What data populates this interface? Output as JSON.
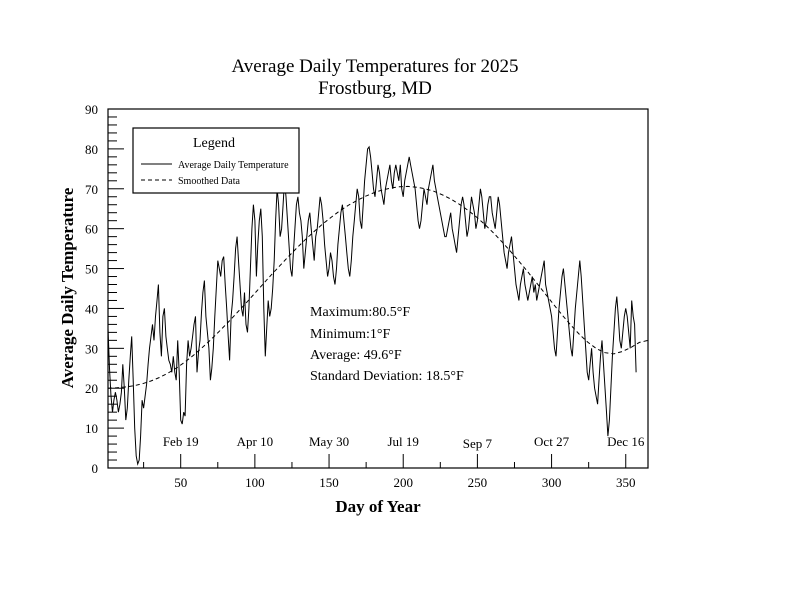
{
  "chart_data": {
    "type": "line",
    "title": "Average Daily Temperatures for 2025",
    "subtitle": "Frostburg, MD",
    "xlabel": "Day of Year",
    "ylabel": "Average Daily Temperature",
    "xlim": [
      1,
      365
    ],
    "ylim": [
      0,
      90
    ],
    "x_ticks": [
      50,
      100,
      150,
      200,
      250,
      300,
      350
    ],
    "y_ticks": [
      0,
      10,
      20,
      30,
      40,
      50,
      60,
      70,
      80,
      90
    ],
    "date_markers": [
      {
        "day": 50,
        "label": "Feb 19"
      },
      {
        "day": 100,
        "label": "Apr 10"
      },
      {
        "day": 150,
        "label": "May 30"
      },
      {
        "day": 200,
        "label": "Jul 19"
      },
      {
        "day": 250,
        "label": "Sep 7"
      },
      {
        "day": 300,
        "label": "Oct 27"
      },
      {
        "day": 350,
        "label": "Dec 16"
      }
    ],
    "legend": {
      "title": "Legend",
      "position": "top-left",
      "entries": [
        "Average Daily Temperature",
        "Smoothed Data"
      ]
    },
    "stats": [
      "Maximum:80.5°F",
      "Minimum:1°F",
      "Average: 49.6°F",
      "Standard Deviation: 18.5°F"
    ],
    "series": [
      {
        "name": "Average Daily Temperature",
        "style": "solid",
        "values": [
          35,
          25,
          18,
          14,
          17,
          19,
          17,
          14,
          16,
          19,
          26,
          20,
          12,
          15,
          22,
          28,
          33,
          22,
          10,
          3,
          1,
          2,
          8,
          17,
          15,
          18,
          21,
          26,
          30,
          33,
          36,
          32,
          38,
          42,
          46,
          34,
          28,
          38,
          40,
          33,
          30,
          27,
          26,
          24,
          28,
          24,
          22,
          32,
          24,
          12,
          11,
          14,
          13,
          26,
          32,
          28,
          30,
          33,
          36,
          38,
          24,
          29,
          32,
          39,
          44,
          47,
          38,
          34,
          30,
          22,
          25,
          30,
          38,
          45,
          52,
          50,
          48,
          52,
          53,
          46,
          40,
          33,
          27,
          38,
          42,
          48,
          55,
          58,
          52,
          46,
          40,
          38,
          44,
          36,
          34,
          40,
          50,
          60,
          66,
          62,
          48,
          56,
          62,
          65,
          58,
          40,
          28,
          35,
          42,
          38,
          40,
          45,
          52,
          62,
          70,
          66,
          58,
          60,
          66,
          72,
          68,
          62,
          56,
          50,
          48,
          54,
          60,
          66,
          68,
          64,
          62,
          58,
          50,
          54,
          58,
          62,
          64,
          60,
          56,
          52,
          58,
          60,
          64,
          68,
          66,
          62,
          56,
          52,
          48,
          50,
          54,
          52,
          48,
          46,
          50,
          56,
          60,
          64,
          66,
          62,
          58,
          54,
          50,
          48,
          52,
          58,
          62,
          66,
          70,
          68,
          62,
          60,
          66,
          72,
          76,
          80,
          80.5,
          78,
          74,
          70,
          68,
          72,
          76,
          74,
          70,
          68,
          66,
          70,
          72,
          74,
          76,
          72,
          70,
          74,
          76,
          74,
          72,
          76,
          70,
          68,
          72,
          74,
          76,
          78,
          76,
          74,
          72,
          70,
          66,
          62,
          60,
          62,
          66,
          70,
          68,
          66,
          70,
          72,
          74,
          76,
          72,
          70,
          68,
          66,
          64,
          62,
          60,
          58,
          58,
          60,
          62,
          64,
          60,
          58,
          56,
          54,
          58,
          62,
          66,
          68,
          66,
          62,
          58,
          60,
          64,
          68,
          66,
          64,
          60,
          62,
          66,
          70,
          68,
          64,
          60,
          62,
          66,
          68,
          68,
          64,
          62,
          60,
          64,
          68,
          66,
          62,
          58,
          54,
          52,
          50,
          54,
          56,
          58,
          54,
          50,
          46,
          44,
          42,
          46,
          48,
          50,
          46,
          44,
          42,
          44,
          46,
          48,
          44,
          46,
          42,
          44,
          46,
          48,
          50,
          52,
          46,
          44,
          42,
          40,
          38,
          34,
          30,
          28,
          34,
          40,
          44,
          48,
          50,
          46,
          42,
          38,
          34,
          30,
          28,
          34,
          40,
          44,
          48,
          52,
          48,
          42,
          36,
          30,
          24,
          22,
          26,
          30,
          24,
          20,
          18,
          16,
          22,
          28,
          32,
          26,
          20,
          14,
          8,
          12,
          20,
          28,
          34,
          40,
          43,
          38,
          32,
          30,
          34,
          38,
          40,
          38,
          34,
          30,
          42,
          38,
          36,
          24
        ]
      },
      {
        "name": "Smoothed Data",
        "style": "dashed",
        "values": [
          20.0,
          20.1,
          20.3,
          20.6,
          21.1,
          21.8,
          22.7,
          23.8,
          25.1,
          26.6,
          28.3,
          30.2,
          32.2,
          34.3,
          36.5,
          38.8,
          41.1,
          43.5,
          45.9,
          48.3,
          50.6,
          52.9,
          55.1,
          57.2,
          59.2,
          61.1,
          62.8,
          64.4,
          65.8,
          67.0,
          68.1,
          69.0,
          69.7,
          70.2,
          70.5,
          70.6,
          70.4,
          70.0,
          69.4,
          68.5,
          67.4,
          66.1,
          64.6,
          62.9,
          61.0,
          58.9,
          56.6,
          54.2,
          51.7,
          49.1,
          46.4,
          43.7,
          41.0,
          38.3,
          35.8,
          33.5,
          31.5,
          29.9,
          28.9,
          28.6,
          29.2,
          30.2,
          31.5,
          32.0
        ]
      }
    ]
  }
}
